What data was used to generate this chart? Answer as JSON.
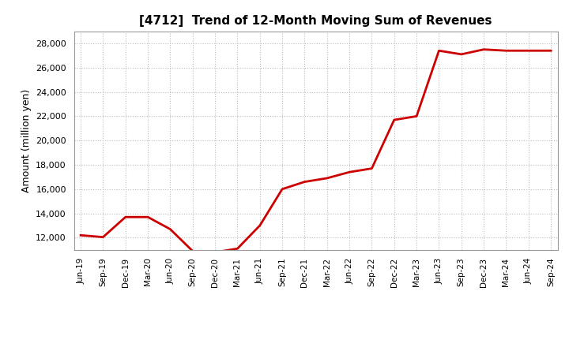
{
  "title": "[4712]  Trend of 12-Month Moving Sum of Revenues",
  "ylabel": "Amount (million yen)",
  "line_color": "#cc0000",
  "line_width": 2.0,
  "background_color": "#ffffff",
  "plot_bg_color": "#ffffff",
  "grid_color": "#bbbbbb",
  "ylim": [
    11000,
    29000
  ],
  "yticks": [
    12000,
    14000,
    16000,
    18000,
    20000,
    22000,
    24000,
    26000,
    28000
  ],
  "x_labels": [
    "Jun-19",
    "Sep-19",
    "Dec-19",
    "Mar-20",
    "Jun-20",
    "Sep-20",
    "Dec-20",
    "Mar-21",
    "Jun-21",
    "Sep-21",
    "Dec-21",
    "Mar-22",
    "Jun-22",
    "Sep-22",
    "Dec-22",
    "Mar-23",
    "Jun-23",
    "Sep-23",
    "Dec-23",
    "Mar-24",
    "Jun-24",
    "Sep-24"
  ],
  "values": [
    12200,
    12050,
    13700,
    13700,
    12700,
    10900,
    10800,
    11100,
    13000,
    16000,
    16600,
    16900,
    17400,
    17700,
    21700,
    22000,
    27400,
    27100,
    27500,
    27400,
    27400,
    27400
  ]
}
